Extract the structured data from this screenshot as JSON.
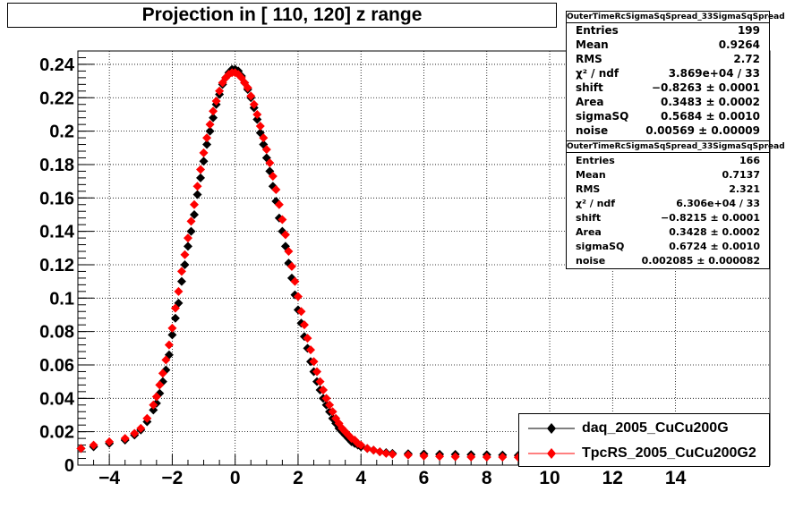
{
  "title": "Projection in [ 110, 120] z range",
  "colors": {
    "series1": "#000000",
    "series2": "#ff0000",
    "frame": "#000000"
  },
  "stats": [
    {
      "header": "OuterTimeRcSigmaSqSpread_33SigmaSqSpread",
      "rows": [
        {
          "label": "Entries",
          "value": "199"
        },
        {
          "label": "Mean",
          "value": "0.9264"
        },
        {
          "label": "RMS",
          "value": "2.72"
        },
        {
          "label": "χ² / ndf",
          "value": "3.869e+04 / 33"
        },
        {
          "label": "shift",
          "value": "−0.8263 ± 0.0001"
        },
        {
          "label": "Area",
          "value": "0.3483 ± 0.0002"
        },
        {
          "label": "sigmaSQ",
          "value": "0.5684 ± 0.0010"
        },
        {
          "label": "noise",
          "value": "0.00569 ± 0.00009"
        }
      ]
    },
    {
      "header": "OuterTimeRcSigmaSqSpread_33SigmaSqSpread",
      "rows": [
        {
          "label": "Entries",
          "value": "166"
        },
        {
          "label": "Mean",
          "value": "0.7137"
        },
        {
          "label": "RMS",
          "value": "2.321"
        },
        {
          "label": "χ² / ndf",
          "value": "6.306e+04 / 33"
        },
        {
          "label": "shift",
          "value": "−0.8215 ± 0.0001"
        },
        {
          "label": "Area",
          "value": "0.3428 ± 0.0002"
        },
        {
          "label": "sigmaSQ",
          "value": "0.6724 ± 0.0010"
        },
        {
          "label": "noise",
          "value": "0.002085 ± 0.000082"
        }
      ]
    }
  ],
  "legend": [
    {
      "label": "daq_2005_CuCu200G"
    },
    {
      "label": "TpcRS_2005_CuCu200G2"
    }
  ],
  "chart_data": {
    "type": "scatter",
    "title": "Projection in [ 110, 120] z range",
    "xlabel": "",
    "ylabel": "",
    "xlim": [
      -5,
      17
    ],
    "ylim": [
      0,
      0.248
    ],
    "grid": true,
    "legend_position": "bottom-right",
    "x_ticks": [
      -4,
      -2,
      0,
      2,
      4,
      6,
      8,
      10,
      12,
      14
    ],
    "x_tick_labels": [
      "−4",
      "−2",
      "0",
      "2",
      "4",
      "6",
      "8",
      "10",
      "12",
      "14"
    ],
    "y_ticks": [
      0,
      0.02,
      0.04,
      0.06,
      0.08,
      0.1,
      0.12,
      0.14,
      0.16,
      0.18,
      0.2,
      0.22,
      0.24
    ],
    "y_tick_labels": [
      "0",
      "0.02",
      "0.04",
      "0.06",
      "0.08",
      "0.1",
      "0.12",
      "0.14",
      "0.16",
      "0.18",
      "0.2",
      "0.22",
      "0.24"
    ],
    "series": [
      {
        "name": "daq_2005_CuCu200G",
        "color": "#000000",
        "marker": "diamond",
        "x": [
          -4.9,
          -4.5,
          -4.0,
          -3.5,
          -3.2,
          -3.0,
          -2.8,
          -2.6,
          -2.5,
          -2.4,
          -2.3,
          -2.2,
          -2.1,
          -2.0,
          -1.9,
          -1.8,
          -1.7,
          -1.6,
          -1.5,
          -1.4,
          -1.3,
          -1.2,
          -1.1,
          -1.0,
          -0.9,
          -0.8,
          -0.7,
          -0.6,
          -0.5,
          -0.4,
          -0.3,
          -0.2,
          -0.1,
          0.0,
          0.1,
          0.2,
          0.3,
          0.4,
          0.5,
          0.6,
          0.7,
          0.8,
          0.9,
          1.0,
          1.1,
          1.2,
          1.3,
          1.4,
          1.5,
          1.6,
          1.7,
          1.8,
          1.9,
          2.0,
          2.1,
          2.2,
          2.3,
          2.4,
          2.5,
          2.6,
          2.7,
          2.8,
          2.9,
          3.0,
          3.1,
          3.2,
          3.3,
          3.4,
          3.5,
          3.6,
          3.7,
          3.8,
          3.9,
          4.0,
          4.2,
          4.4,
          4.6,
          4.8,
          5.0,
          5.5,
          6.0,
          6.5,
          7.0,
          7.5,
          8.0,
          8.5,
          9.0,
          9.5,
          10.0
        ],
        "y": [
          0.01,
          0.011,
          0.013,
          0.015,
          0.018,
          0.021,
          0.026,
          0.033,
          0.037,
          0.043,
          0.05,
          0.057,
          0.066,
          0.078,
          0.088,
          0.097,
          0.11,
          0.12,
          0.131,
          0.14,
          0.15,
          0.162,
          0.172,
          0.182,
          0.192,
          0.2,
          0.208,
          0.216,
          0.222,
          0.228,
          0.232,
          0.235,
          0.237,
          0.237,
          0.236,
          0.233,
          0.229,
          0.225,
          0.22,
          0.214,
          0.207,
          0.199,
          0.192,
          0.184,
          0.176,
          0.167,
          0.158,
          0.148,
          0.14,
          0.131,
          0.121,
          0.112,
          0.102,
          0.093,
          0.085,
          0.077,
          0.07,
          0.062,
          0.056,
          0.05,
          0.045,
          0.04,
          0.036,
          0.032,
          0.028,
          0.025,
          0.022,
          0.02,
          0.018,
          0.016,
          0.014,
          0.013,
          0.012,
          0.011,
          0.01,
          0.009,
          0.008,
          0.0075,
          0.007,
          0.0068,
          0.0067,
          0.0065,
          0.0064,
          0.0063,
          0.0062,
          0.006,
          0.0058,
          0.0057,
          0.0056
        ]
      },
      {
        "name": "TpcRS_2005_CuCu200G2",
        "color": "#ff0000",
        "marker": "diamond",
        "x": [
          -4.9,
          -4.5,
          -4.0,
          -3.5,
          -3.2,
          -3.0,
          -2.8,
          -2.6,
          -2.5,
          -2.4,
          -2.3,
          -2.2,
          -2.1,
          -2.0,
          -1.9,
          -1.8,
          -1.7,
          -1.6,
          -1.5,
          -1.4,
          -1.3,
          -1.2,
          -1.1,
          -1.0,
          -0.9,
          -0.8,
          -0.7,
          -0.6,
          -0.5,
          -0.4,
          -0.3,
          -0.2,
          -0.1,
          0.0,
          0.1,
          0.2,
          0.3,
          0.4,
          0.5,
          0.6,
          0.7,
          0.8,
          0.9,
          1.0,
          1.1,
          1.2,
          1.3,
          1.4,
          1.5,
          1.6,
          1.7,
          1.8,
          1.9,
          2.0,
          2.1,
          2.2,
          2.3,
          2.4,
          2.5,
          2.6,
          2.7,
          2.8,
          2.9,
          3.0,
          3.1,
          3.2,
          3.3,
          3.4,
          3.5,
          3.6,
          3.7,
          3.8,
          3.9,
          4.0,
          4.2,
          4.4,
          4.6,
          4.8,
          5.0,
          5.5,
          6.0,
          6.5,
          7.0,
          7.5,
          8.0,
          8.5,
          9.0,
          9.5,
          10.0
        ],
        "y": [
          0.01,
          0.012,
          0.014,
          0.016,
          0.019,
          0.022,
          0.028,
          0.036,
          0.041,
          0.048,
          0.055,
          0.063,
          0.072,
          0.082,
          0.094,
          0.104,
          0.116,
          0.126,
          0.136,
          0.146,
          0.156,
          0.167,
          0.177,
          0.187,
          0.196,
          0.204,
          0.212,
          0.218,
          0.224,
          0.229,
          0.232,
          0.234,
          0.235,
          0.235,
          0.234,
          0.232,
          0.229,
          0.226,
          0.221,
          0.216,
          0.21,
          0.203,
          0.196,
          0.189,
          0.181,
          0.173,
          0.165,
          0.156,
          0.147,
          0.138,
          0.128,
          0.119,
          0.11,
          0.101,
          0.092,
          0.084,
          0.076,
          0.069,
          0.062,
          0.056,
          0.05,
          0.045,
          0.04,
          0.036,
          0.032,
          0.028,
          0.025,
          0.022,
          0.02,
          0.018,
          0.016,
          0.015,
          0.013,
          0.012,
          0.01,
          0.009,
          0.008,
          0.007,
          0.0065,
          0.006,
          0.0055,
          0.0052,
          0.005,
          0.0049,
          0.0048,
          0.0048,
          0.0047,
          0.0047,
          0.0046
        ]
      }
    ]
  }
}
